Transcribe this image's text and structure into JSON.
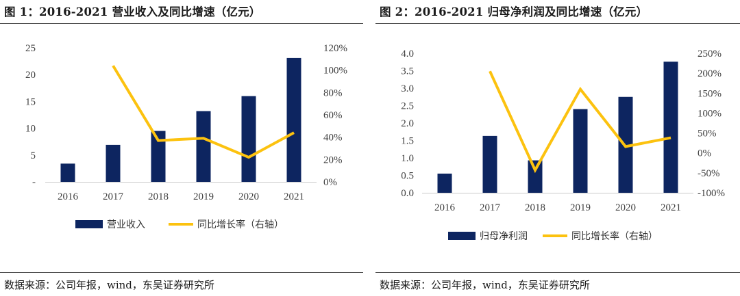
{
  "colors": {
    "bar": "#0d2560",
    "line": "#fcc20f"
  },
  "panels": [
    {
      "title": "图 1：2016-2021 营业收入及同比增速（亿元）",
      "source": "数据来源：公司年报，wind，东吴证券研究所"
    },
    {
      "title": "图 2：2016-2021 归母净利润及同比增速（亿元）",
      "source": "数据来源：公司年报，wind，东吴证券研究所"
    }
  ],
  "chart_data": [
    {
      "type": "bar",
      "categories": [
        "2016",
        "2017",
        "2018",
        "2019",
        "2020",
        "2021"
      ],
      "series": [
        {
          "name": "营业收入",
          "type": "bar",
          "axis": "left",
          "values": [
            3.4,
            6.9,
            9.5,
            13.2,
            16.0,
            23.1
          ]
        },
        {
          "name": "同比增长率（右轴）",
          "type": "line",
          "axis": "right",
          "values": [
            null,
            1.04,
            0.37,
            0.39,
            0.22,
            0.44
          ]
        }
      ],
      "ylim_left": [
        0,
        25
      ],
      "yticks_left": [
        "-",
        "5",
        "10",
        "15",
        "20",
        "25"
      ],
      "ylim_right": [
        0,
        1.2
      ],
      "yticks_right": [
        "0%",
        "20%",
        "40%",
        "60%",
        "80%",
        "100%",
        "120%"
      ],
      "legend": "bottom"
    },
    {
      "type": "bar",
      "categories": [
        "2016",
        "2017",
        "2018",
        "2019",
        "2020",
        "2021"
      ],
      "series": [
        {
          "name": "归母净利润",
          "type": "bar",
          "axis": "left",
          "values": [
            0.55,
            1.63,
            0.93,
            2.4,
            2.75,
            3.76
          ]
        },
        {
          "name": "同比增长率（右轴）",
          "type": "line",
          "axis": "right",
          "values": [
            null,
            2.05,
            -0.43,
            1.6,
            0.16,
            0.38
          ]
        }
      ],
      "ylim_left": [
        0,
        4.0
      ],
      "yticks_left": [
        "0.0",
        "0.5",
        "1.0",
        "1.5",
        "2.0",
        "2.5",
        "3.0",
        "3.5",
        "4.0"
      ],
      "ylim_right": [
        -1.0,
        2.5
      ],
      "yticks_right": [
        "-100%",
        "-50%",
        "0%",
        "50%",
        "100%",
        "150%",
        "200%",
        "250%"
      ],
      "legend": "bottom"
    }
  ]
}
